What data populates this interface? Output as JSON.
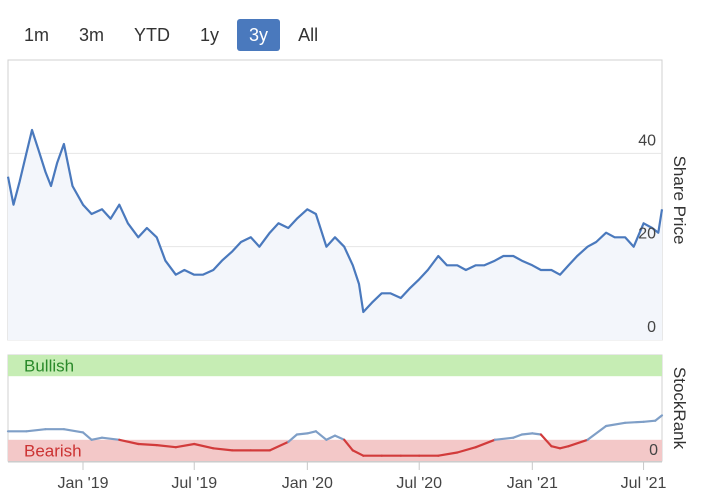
{
  "range_selector": {
    "buttons": [
      "1m",
      "3m",
      "YTD",
      "1y",
      "3y",
      "All"
    ],
    "active": "3y"
  },
  "colors": {
    "price_line": "#4a79bd",
    "price_fill": "#f3f6fb",
    "bullish_band": "#c6edb4",
    "bearish_band": "#f3c8c8",
    "bullish_text": "#2a8a2a",
    "bearish_text": "#cc3333",
    "rank_high": "#7f9fc7",
    "rank_low": "#d23b3b",
    "grid": "#e6e6e6"
  },
  "chart_data": [
    {
      "type": "area",
      "name": "share-price",
      "ylabel": "Share Price",
      "ylim": [
        0,
        60
      ],
      "yticks": [
        0,
        20,
        40
      ],
      "x_range": [
        "2018-09-01",
        "2021-07-31"
      ],
      "x_ticks": [
        "Jan '19",
        "Jul '19",
        "Jan '20",
        "Jul '20",
        "Jan '21",
        "Jul '21"
      ],
      "grid": true,
      "series": [
        {
          "x": [
            "2018-09-01",
            "2018-09-10",
            "2018-09-20",
            "2018-10-01",
            "2018-10-10",
            "2018-10-20",
            "2018-11-01",
            "2018-11-10",
            "2018-11-20",
            "2018-12-01",
            "2018-12-15",
            "2019-01-01",
            "2019-01-15",
            "2019-02-01",
            "2019-02-15",
            "2019-03-01",
            "2019-03-15",
            "2019-04-01",
            "2019-04-15",
            "2019-05-01",
            "2019-05-15",
            "2019-06-01",
            "2019-06-15",
            "2019-07-01",
            "2019-07-15",
            "2019-08-01",
            "2019-08-15",
            "2019-09-01",
            "2019-09-15",
            "2019-10-01",
            "2019-10-15",
            "2019-11-01",
            "2019-11-15",
            "2019-12-01",
            "2019-12-15",
            "2020-01-01",
            "2020-01-15",
            "2020-02-01",
            "2020-02-15",
            "2020-03-01",
            "2020-03-15",
            "2020-03-25",
            "2020-04-01",
            "2020-04-15",
            "2020-05-01",
            "2020-05-15",
            "2020-06-01",
            "2020-06-15",
            "2020-07-01",
            "2020-07-15",
            "2020-08-01",
            "2020-08-15",
            "2020-09-01",
            "2020-09-15",
            "2020-10-01",
            "2020-10-15",
            "2020-11-01",
            "2020-11-15",
            "2020-12-01",
            "2020-12-15",
            "2021-01-01",
            "2021-01-15",
            "2021-02-01",
            "2021-02-15",
            "2021-03-01",
            "2021-03-15",
            "2021-04-01",
            "2021-04-15",
            "2021-05-01",
            "2021-05-15",
            "2021-06-01",
            "2021-06-15",
            "2021-07-01",
            "2021-07-15",
            "2021-07-25",
            "2021-07-31"
          ],
          "y": [
            35,
            29,
            34,
            40,
            45,
            41,
            36,
            33,
            38,
            42,
            33,
            29,
            27,
            28,
            26,
            29,
            25,
            22,
            24,
            22,
            17,
            14,
            15,
            14,
            14,
            15,
            17,
            19,
            21,
            22,
            20,
            23,
            25,
            24,
            26,
            28,
            27,
            20,
            22,
            20,
            16,
            12,
            6,
            8,
            10,
            10,
            9,
            11,
            13,
            15,
            18,
            16,
            16,
            15,
            16,
            16,
            17,
            18,
            18,
            17,
            16,
            15,
            15,
            14,
            16,
            18,
            20,
            21,
            23,
            22,
            22,
            20,
            25,
            24,
            23,
            28
          ]
        }
      ]
    },
    {
      "type": "line",
      "name": "stockrank",
      "ylabel": "StockRank",
      "ylim": [
        0,
        100
      ],
      "yticks": [
        0
      ],
      "bands": [
        {
          "label": "Bullish",
          "from": 80,
          "to": 100
        },
        {
          "label": "Bearish",
          "from": 0,
          "to": 20
        }
      ],
      "grid": true,
      "series": [
        {
          "x": [
            "2018-09-01",
            "2018-10-01",
            "2018-11-01",
            "2018-12-01",
            "2019-01-01",
            "2019-01-15",
            "2019-02-01",
            "2019-03-01",
            "2019-04-01",
            "2019-05-01",
            "2019-06-01",
            "2019-07-01",
            "2019-08-01",
            "2019-09-01",
            "2019-10-01",
            "2019-11-01",
            "2019-12-01",
            "2019-12-15",
            "2020-01-01",
            "2020-01-15",
            "2020-02-01",
            "2020-02-15",
            "2020-03-01",
            "2020-03-15",
            "2020-04-01",
            "2020-05-01",
            "2020-06-01",
            "2020-07-01",
            "2020-08-01",
            "2020-09-01",
            "2020-10-01",
            "2020-11-01",
            "2020-12-01",
            "2020-12-15",
            "2021-01-01",
            "2021-01-15",
            "2021-02-01",
            "2021-02-15",
            "2021-03-01",
            "2021-04-01",
            "2021-05-01",
            "2021-06-01",
            "2021-07-01",
            "2021-07-20",
            "2021-07-31"
          ],
          "y": [
            28,
            28,
            30,
            30,
            27,
            20,
            22,
            20,
            16,
            15,
            13,
            16,
            12,
            10,
            10,
            10,
            18,
            25,
            26,
            28,
            20,
            24,
            20,
            10,
            5,
            5,
            5,
            5,
            5,
            8,
            13,
            20,
            22,
            25,
            26,
            25,
            14,
            12,
            14,
            20,
            33,
            36,
            37,
            38,
            43
          ]
        }
      ]
    }
  ]
}
